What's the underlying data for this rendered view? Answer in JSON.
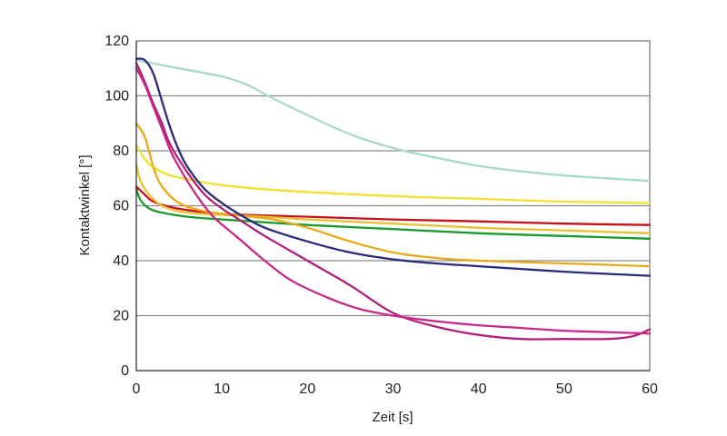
{
  "chart_data": {
    "type": "line",
    "title": "",
    "xlabel": "Zeit [s]",
    "ylabel": "Kontaktwinkel [°]",
    "xlim": [
      0,
      60
    ],
    "ylim": [
      0,
      120
    ],
    "x_ticks": [
      "0",
      "10",
      "20",
      "30",
      "40",
      "50",
      "60"
    ],
    "y_ticks": [
      "0",
      "20",
      "40",
      "60",
      "80",
      "100",
      "120"
    ],
    "grid": "horizontal",
    "legend": "none",
    "series": [
      {
        "color": "#a8d8cc",
        "points": [
          [
            0,
            113
          ],
          [
            5,
            110
          ],
          [
            10,
            107
          ],
          [
            13,
            104
          ],
          [
            16,
            99
          ],
          [
            20,
            93
          ],
          [
            25,
            86
          ],
          [
            30,
            81
          ],
          [
            35,
            77.5
          ],
          [
            40,
            74.5
          ],
          [
            45,
            72.5
          ],
          [
            50,
            71
          ],
          [
            55,
            70
          ],
          [
            60,
            69
          ]
        ]
      },
      {
        "color": "#f0e030",
        "points": [
          [
            0,
            82
          ],
          [
            1,
            77
          ],
          [
            2,
            74
          ],
          [
            4,
            71
          ],
          [
            7,
            69
          ],
          [
            10,
            67.5
          ],
          [
            15,
            66
          ],
          [
            20,
            65
          ],
          [
            30,
            63.5
          ],
          [
            40,
            62.5
          ],
          [
            50,
            61.5
          ],
          [
            60,
            61
          ]
        ]
      },
      {
        "color": "#c8101a",
        "points": [
          [
            0,
            67
          ],
          [
            1,
            64
          ],
          [
            2,
            61.5
          ],
          [
            4,
            59.5
          ],
          [
            7,
            58
          ],
          [
            10,
            57
          ],
          [
            20,
            56
          ],
          [
            30,
            55
          ],
          [
            40,
            54.3
          ],
          [
            50,
            53.5
          ],
          [
            60,
            53
          ]
        ]
      },
      {
        "color": "#e8c030",
        "points": [
          [
            0,
            75
          ],
          [
            0.5,
            69
          ],
          [
            1.5,
            64
          ],
          [
            3,
            60
          ],
          [
            5,
            58
          ],
          [
            8,
            57
          ],
          [
            15,
            56
          ],
          [
            20,
            55
          ],
          [
            30,
            53.5
          ],
          [
            40,
            52
          ],
          [
            50,
            51
          ],
          [
            60,
            50
          ]
        ]
      },
      {
        "color": "#1a9a2c",
        "points": [
          [
            0,
            66
          ],
          [
            0.5,
            62
          ],
          [
            1.5,
            59
          ],
          [
            3,
            57.5
          ],
          [
            6,
            56
          ],
          [
            10,
            55
          ],
          [
            20,
            53
          ],
          [
            30,
            51.5
          ],
          [
            40,
            50
          ],
          [
            50,
            49
          ],
          [
            60,
            48
          ]
        ]
      },
      {
        "color": "#e8a818",
        "points": [
          [
            0,
            90
          ],
          [
            1,
            85
          ],
          [
            2,
            74
          ],
          [
            3,
            67
          ],
          [
            5,
            61
          ],
          [
            8,
            58
          ],
          [
            12,
            56.5
          ],
          [
            16,
            55
          ],
          [
            20,
            52
          ],
          [
            25,
            47
          ],
          [
            30,
            43
          ],
          [
            35,
            41
          ],
          [
            40,
            40
          ],
          [
            50,
            39
          ],
          [
            60,
            38
          ]
        ]
      },
      {
        "color": "#2a2a7a",
        "points": [
          [
            0,
            113.5
          ],
          [
            1,
            113
          ],
          [
            2,
            108
          ],
          [
            3,
            98
          ],
          [
            4,
            88
          ],
          [
            5,
            80
          ],
          [
            6,
            74
          ],
          [
            8,
            66
          ],
          [
            10,
            61
          ],
          [
            12,
            57
          ],
          [
            15,
            52
          ],
          [
            20,
            47
          ],
          [
            25,
            43
          ],
          [
            30,
            40.5
          ],
          [
            35,
            39
          ],
          [
            40,
            38
          ],
          [
            50,
            36
          ],
          [
            60,
            34.5
          ]
        ]
      },
      {
        "color": "#b0207a",
        "points": [
          [
            0,
            112
          ],
          [
            1,
            105
          ],
          [
            2,
            97
          ],
          [
            3,
            90
          ],
          [
            4,
            82
          ],
          [
            6,
            72
          ],
          [
            8,
            64
          ],
          [
            10,
            59
          ],
          [
            12,
            55
          ],
          [
            15,
            49
          ],
          [
            20,
            40
          ],
          [
            25,
            31
          ],
          [
            30,
            21
          ],
          [
            35,
            16
          ],
          [
            40,
            13
          ],
          [
            45,
            11.5
          ],
          [
            50,
            11.5
          ],
          [
            55,
            11.5
          ],
          [
            58,
            12.5
          ],
          [
            60,
            15
          ]
        ]
      },
      {
        "color": "#c82888",
        "points": [
          [
            0,
            110
          ],
          [
            1,
            104
          ],
          [
            2,
            96
          ],
          [
            3,
            88
          ],
          [
            4,
            80
          ],
          [
            5,
            74
          ],
          [
            7,
            64
          ],
          [
            9,
            56
          ],
          [
            12,
            48
          ],
          [
            15,
            40
          ],
          [
            18,
            33
          ],
          [
            22,
            27
          ],
          [
            26,
            22.5
          ],
          [
            30,
            20
          ],
          [
            35,
            18
          ],
          [
            40,
            16.5
          ],
          [
            45,
            15.5
          ],
          [
            50,
            14.5
          ],
          [
            55,
            14
          ],
          [
            60,
            13.5
          ]
        ]
      }
    ]
  }
}
